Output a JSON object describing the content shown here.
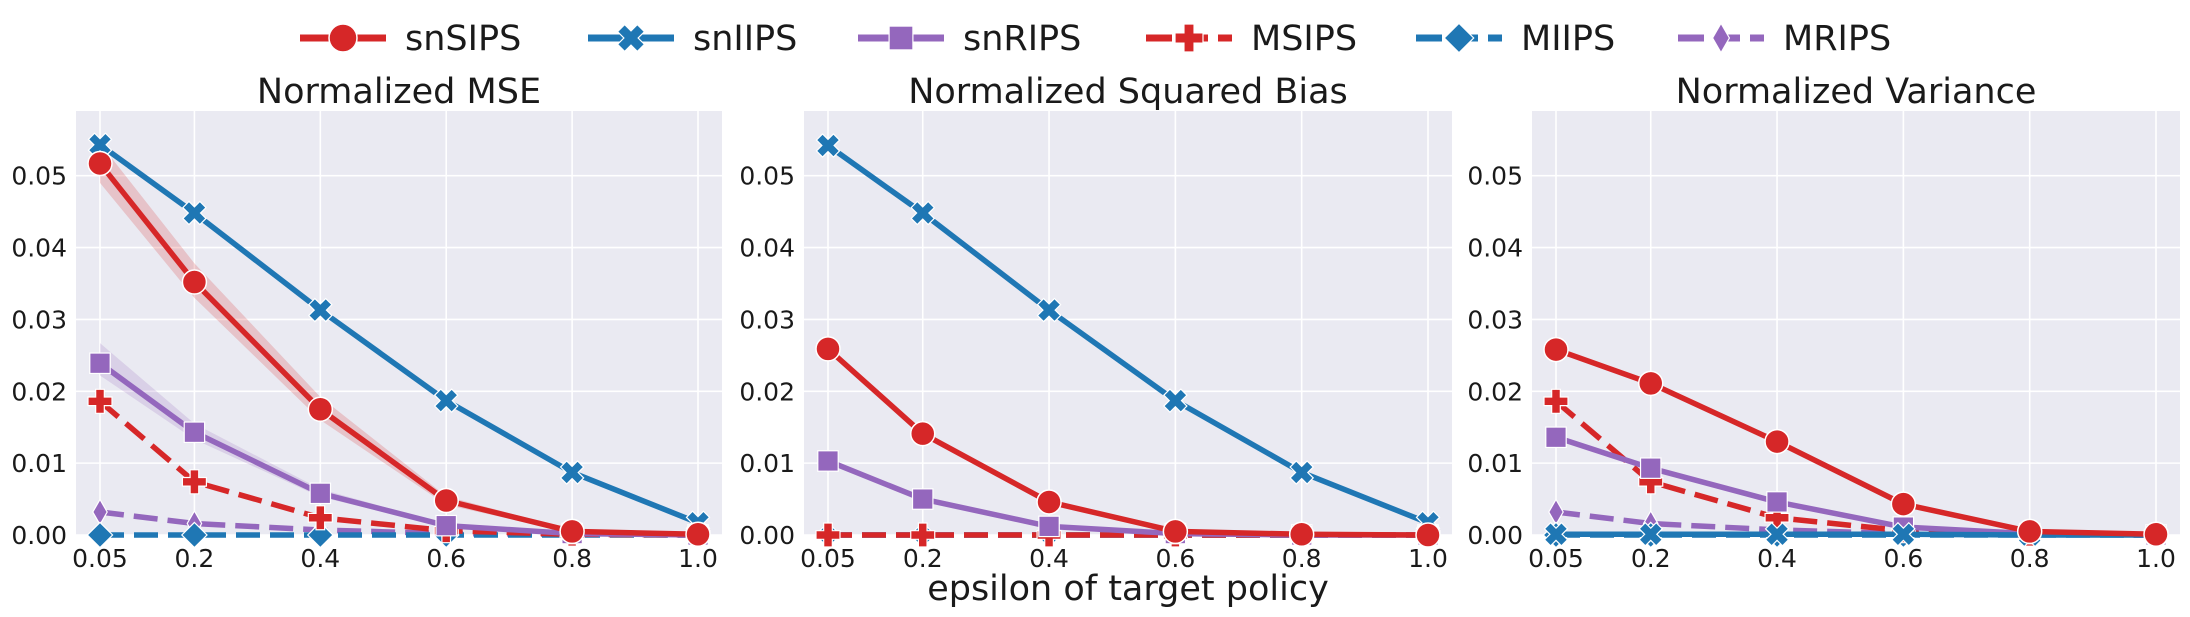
{
  "figure": {
    "xlabel": "epsilon of target policy"
  },
  "legend": {
    "placement": "top-center",
    "entries": [
      {
        "name": "snSIPS",
        "color": "#d62728",
        "marker": "circle",
        "dashed": false
      },
      {
        "name": "snIIPS",
        "color": "#1f77b4",
        "marker": "x-filled",
        "dashed": false
      },
      {
        "name": "snRIPS",
        "color": "#9467bd",
        "marker": "square",
        "dashed": false
      },
      {
        "name": "MSIPS",
        "color": "#d62728",
        "marker": "plus-filled",
        "dashed": true
      },
      {
        "name": "MIIPS",
        "color": "#1f77b4",
        "marker": "diamond",
        "dashed": true
      },
      {
        "name": "MRIPS",
        "color": "#9467bd",
        "marker": "thin-diamond",
        "dashed": true
      }
    ]
  },
  "chart_data": [
    {
      "type": "line",
      "title": "Normalized MSE",
      "xlabel": "",
      "ylabel": "",
      "x": [
        0.05,
        0.2,
        0.4,
        0.6,
        0.8,
        1.0
      ],
      "xticks": [
        "0.05",
        "0.2",
        "0.4",
        "0.6",
        "0.8",
        "1.0"
      ],
      "ylim": [
        0,
        0.059
      ],
      "yticks": [
        "0.00",
        "0.01",
        "0.02",
        "0.03",
        "0.04",
        "0.05"
      ],
      "grid": true,
      "series": [
        {
          "name": "snSIPS",
          "values": [
            0.0517,
            0.0352,
            0.0175,
            0.0048,
            0.0005,
            0.0001
          ],
          "band_lower": [
            0.049,
            0.033,
            0.016,
            0.0042,
            0.0003,
            0.0
          ],
          "band_upper": [
            0.0545,
            0.0378,
            0.0192,
            0.0054,
            0.0007,
            0.0002
          ]
        },
        {
          "name": "snIIPS",
          "values": [
            0.0543,
            0.0448,
            0.0313,
            0.0187,
            0.0087,
            0.0017
          ]
        },
        {
          "name": "snRIPS",
          "values": [
            0.0239,
            0.0143,
            0.0058,
            0.0013,
            0.0002,
            0.0
          ],
          "band_lower": [
            0.0222,
            0.0133,
            0.0053,
            0.0011,
            0.0001,
            0.0
          ],
          "band_upper": [
            0.0267,
            0.0155,
            0.0064,
            0.0015,
            0.0003,
            0.0001
          ]
        },
        {
          "name": "MSIPS",
          "values": [
            0.0186,
            0.0074,
            0.0024,
            0.0006,
            0.0001,
            0.0
          ]
        },
        {
          "name": "MIIPS",
          "values": [
            0.0,
            0.0,
            0.0,
            0.0,
            0.0,
            0.0
          ]
        },
        {
          "name": "MRIPS",
          "values": [
            0.0032,
            0.0016,
            0.0007,
            0.0002,
            0.0001,
            0.0
          ]
        }
      ]
    },
    {
      "type": "line",
      "title": "Normalized Squared Bias",
      "xlabel": "",
      "ylabel": "",
      "x": [
        0.05,
        0.2,
        0.4,
        0.6,
        0.8,
        1.0
      ],
      "xticks": [
        "0.05",
        "0.2",
        "0.4",
        "0.6",
        "0.8",
        "1.0"
      ],
      "ylim": [
        0,
        0.059
      ],
      "yticks": [
        "0.00",
        "0.01",
        "0.02",
        "0.03",
        "0.04",
        "0.05"
      ],
      "grid": true,
      "series": [
        {
          "name": "snSIPS",
          "values": [
            0.0259,
            0.0141,
            0.0046,
            0.0005,
            0.0001,
            0.0
          ]
        },
        {
          "name": "snIIPS",
          "values": [
            0.0542,
            0.0448,
            0.0313,
            0.0187,
            0.0087,
            0.0017
          ]
        },
        {
          "name": "snRIPS",
          "values": [
            0.0103,
            0.005,
            0.0012,
            0.0002,
            0.0,
            0.0
          ]
        },
        {
          "name": "MSIPS",
          "values": [
            0.0,
            0.0,
            0.0,
            0.0,
            0.0,
            0.0
          ]
        },
        {
          "name": "MIIPS",
          "values": [
            0.0,
            0.0,
            0.0,
            0.0,
            0.0,
            0.0
          ]
        },
        {
          "name": "MRIPS",
          "values": [
            0.0,
            0.0,
            0.0,
            0.0,
            0.0,
            0.0
          ]
        }
      ]
    },
    {
      "type": "line",
      "title": "Normalized Variance",
      "xlabel": "",
      "ylabel": "",
      "x": [
        0.05,
        0.2,
        0.4,
        0.6,
        0.8,
        1.0
      ],
      "xticks": [
        "0.05",
        "0.2",
        "0.4",
        "0.6",
        "0.8",
        "1.0"
      ],
      "ylim": [
        0,
        0.059
      ],
      "yticks": [
        "0.00",
        "0.01",
        "0.02",
        "0.03",
        "0.04",
        "0.05"
      ],
      "grid": true,
      "series": [
        {
          "name": "snSIPS",
          "values": [
            0.0258,
            0.0211,
            0.013,
            0.0043,
            0.0005,
            0.0001
          ]
        },
        {
          "name": "snIIPS",
          "values": [
            0.0001,
            0.0001,
            0.0001,
            0.0001,
            0.0,
            0.0
          ]
        },
        {
          "name": "snRIPS",
          "values": [
            0.0136,
            0.0093,
            0.0046,
            0.0011,
            0.0002,
            0.0
          ]
        },
        {
          "name": "MSIPS",
          "values": [
            0.0186,
            0.0074,
            0.0024,
            0.0006,
            0.0001,
            0.0
          ]
        },
        {
          "name": "MIIPS",
          "values": [
            0.0,
            0.0,
            0.0,
            0.0,
            0.0,
            0.0
          ]
        },
        {
          "name": "MRIPS",
          "values": [
            0.0032,
            0.0016,
            0.0007,
            0.0002,
            0.0001,
            0.0
          ]
        }
      ]
    }
  ]
}
